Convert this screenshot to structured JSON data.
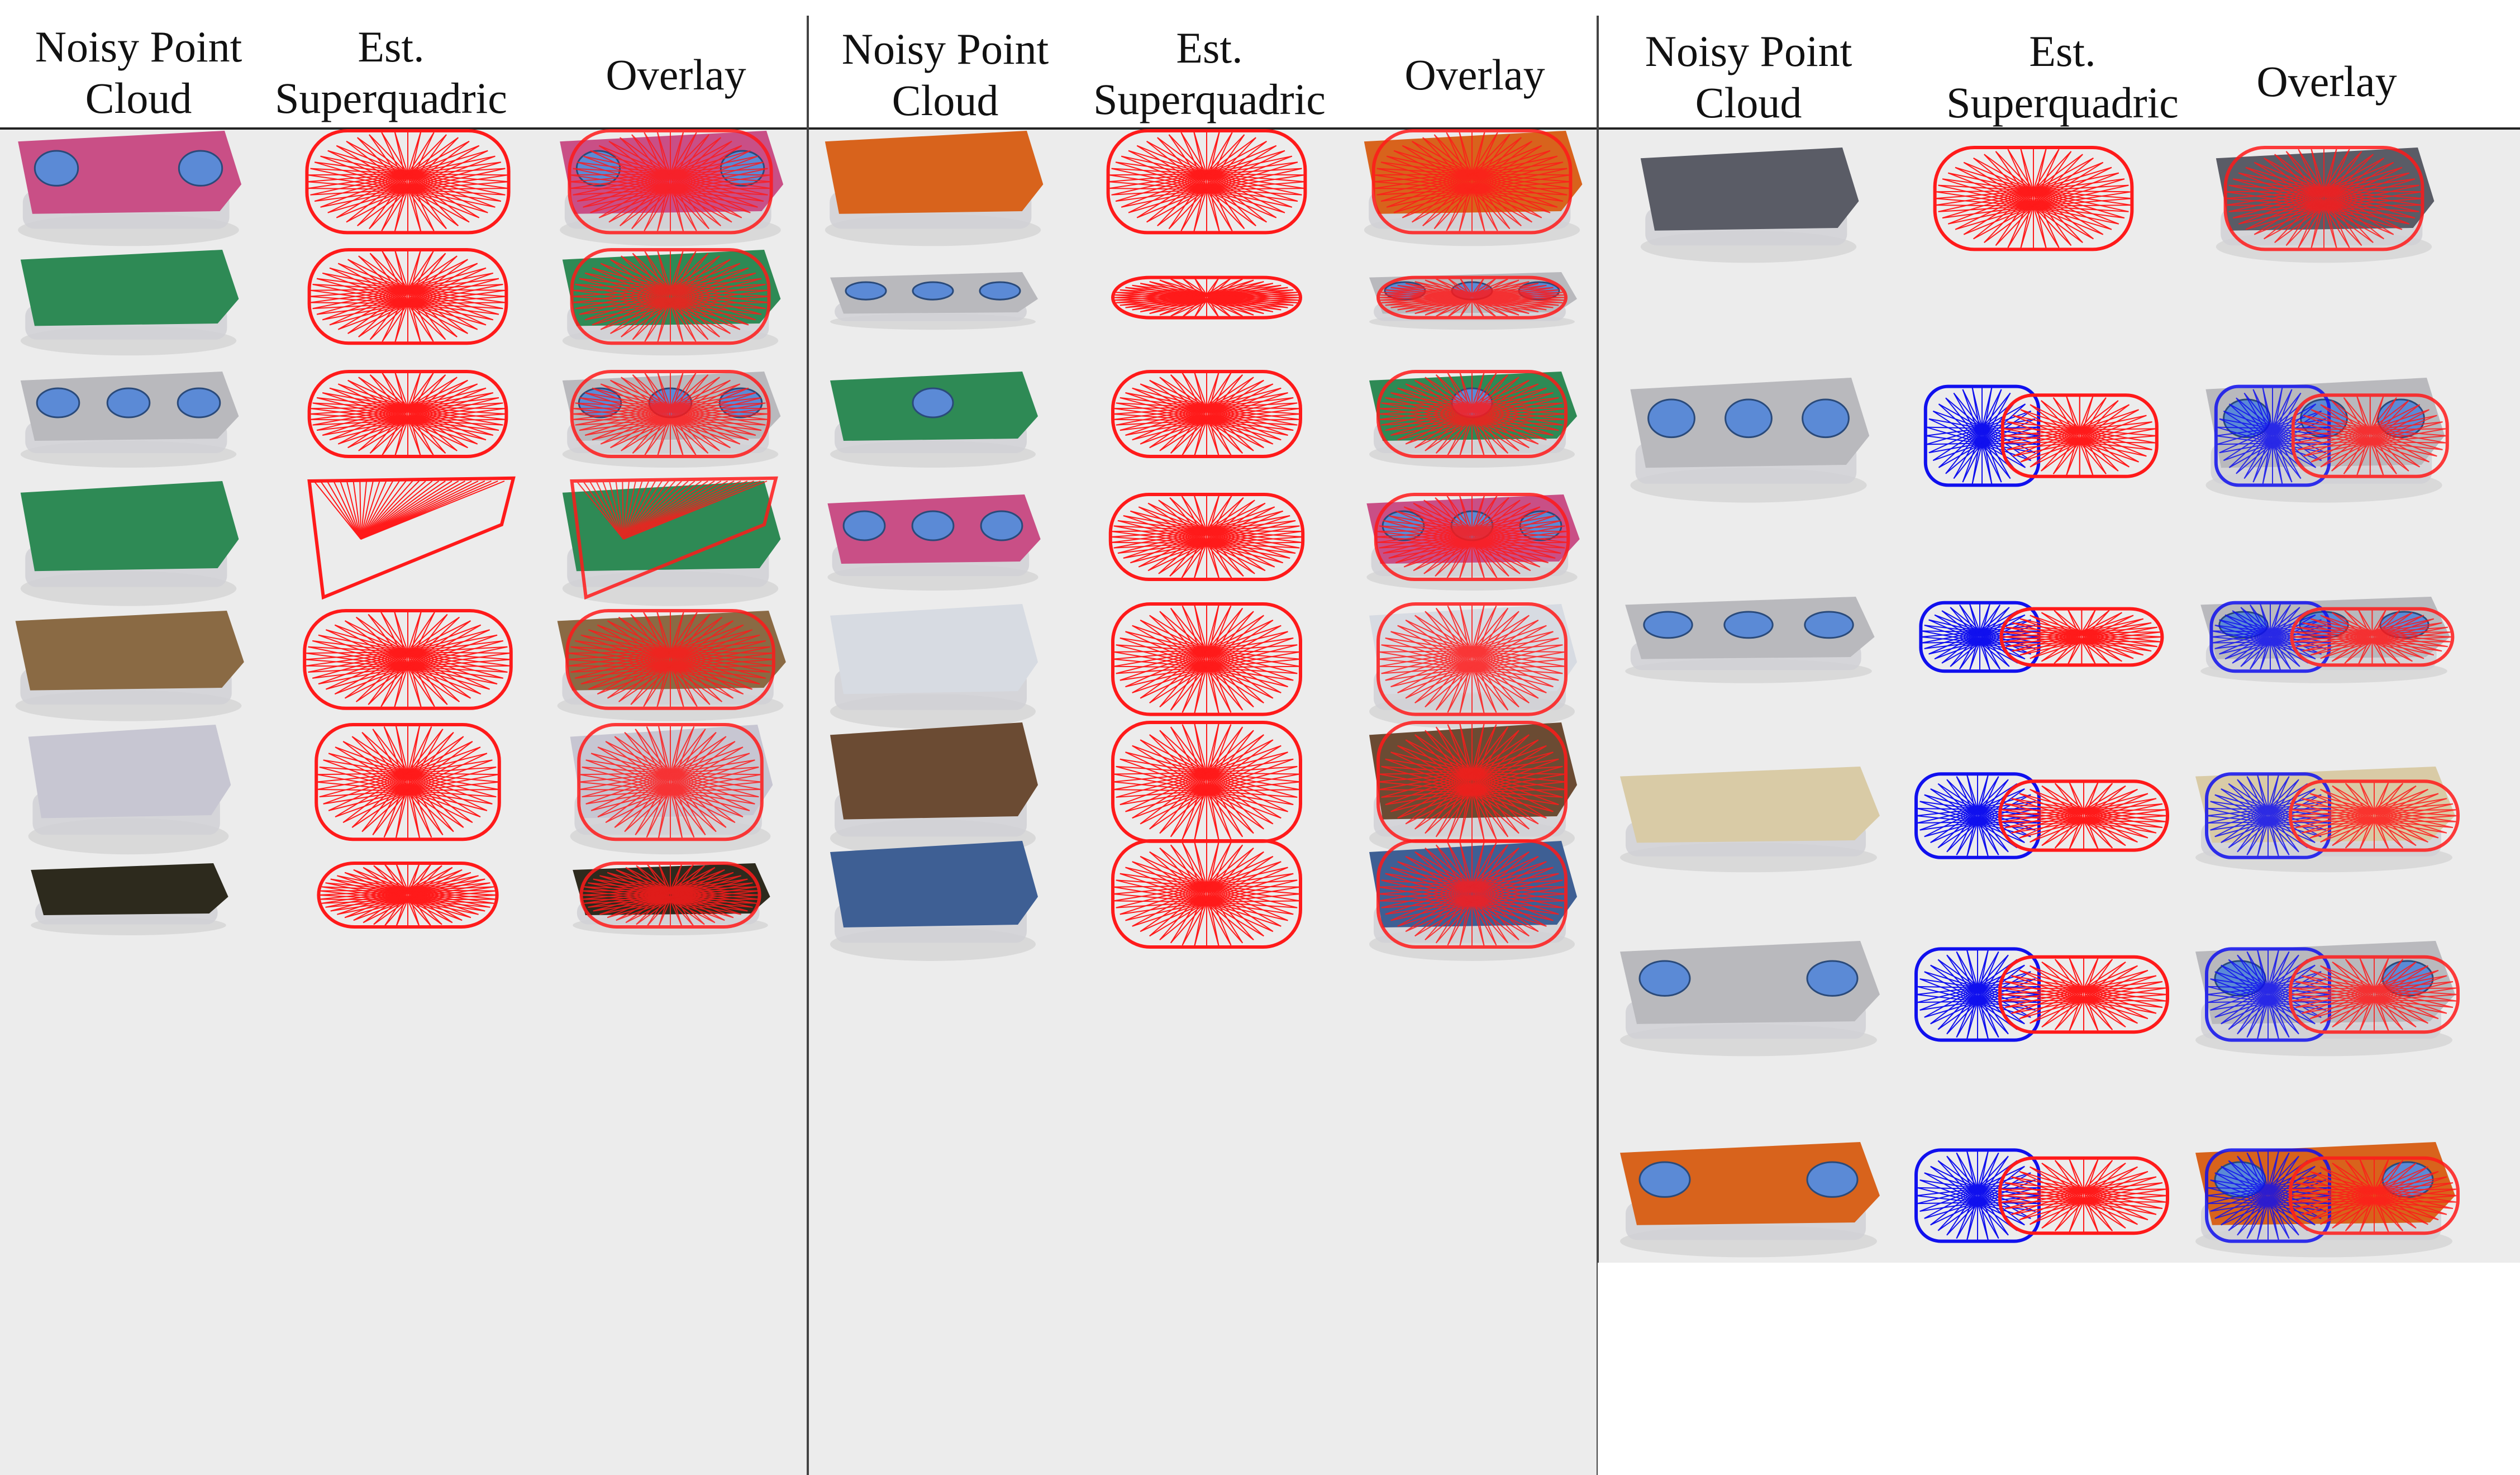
{
  "figure": {
    "panels": [
      {
        "headers": {
          "noisy": [
            "Noisy Point",
            "Cloud"
          ],
          "est": [
            "Est.",
            "Superquadric"
          ],
          "overlay": [
            "Overlay"
          ]
        }
      },
      {
        "headers": {
          "noisy": [
            "Noisy Point",
            "Cloud"
          ],
          "est": [
            "Est.",
            "Superquadric"
          ],
          "overlay": [
            "Overlay"
          ]
        }
      },
      {
        "headers": {
          "noisy": [
            "Noisy Point",
            "Cloud"
          ],
          "est": [
            "Est.",
            "Superquadric"
          ],
          "overlay": [
            "Overlay"
          ]
        }
      }
    ]
  },
  "colors": {
    "superquadric_primary": "#ff1a1a",
    "superquadric_secondary": "#1010ee",
    "pink_object": "#c94f86",
    "green_object": "#2e8a55",
    "gray_object": "#b9b9bd",
    "orange_object": "#d8631c",
    "blue_marker": "#5b8ad6",
    "navy_object": "#3e5f94"
  }
}
